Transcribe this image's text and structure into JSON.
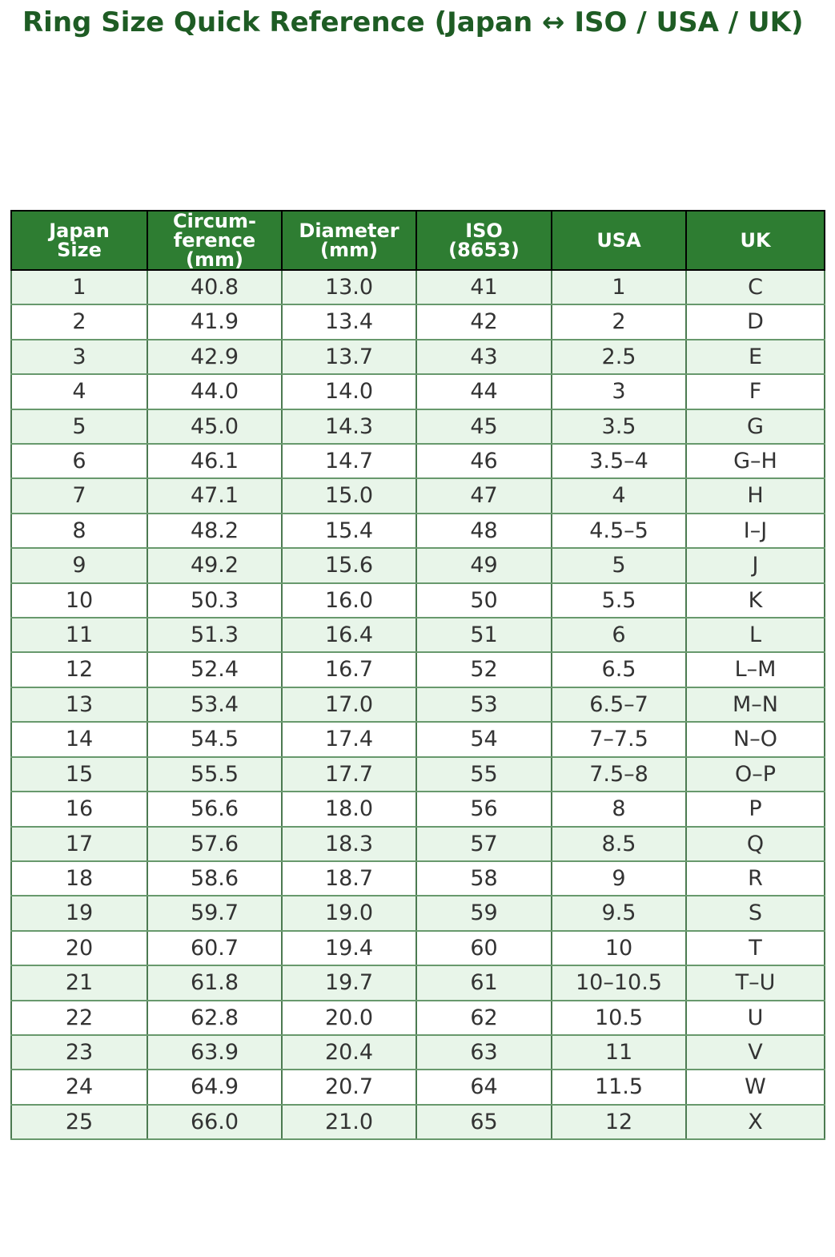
{
  "page": {
    "title": "Ring Size Quick Reference (Japan ↔ ISO / USA / UK)"
  },
  "colors": {
    "title_text": "#1e5c24",
    "header_bg": "#2e7d32",
    "header_text": "#ffffff",
    "header_grid": "#000000",
    "row_alt_bg": "#e8f5e9",
    "row_bg": "#ffffff",
    "grid_horizontal": "#68996d",
    "grid_vertical": "#4c7a51",
    "cell_text": "#333333"
  },
  "table": {
    "columns": [
      {
        "id": "japan-size",
        "label": "Japan\nSize"
      },
      {
        "id": "circumference",
        "label": "Circum-\nference\n(mm)"
      },
      {
        "id": "diameter",
        "label": "Diameter\n(mm)"
      },
      {
        "id": "iso",
        "label": "ISO\n(8653)"
      },
      {
        "id": "usa",
        "label": "USA"
      },
      {
        "id": "uk",
        "label": "UK"
      }
    ],
    "rows": [
      [
        "1",
        "40.8",
        "13.0",
        "41",
        "1",
        "C"
      ],
      [
        "2",
        "41.9",
        "13.4",
        "42",
        "2",
        "D"
      ],
      [
        "3",
        "42.9",
        "13.7",
        "43",
        "2.5",
        "E"
      ],
      [
        "4",
        "44.0",
        "14.0",
        "44",
        "3",
        "F"
      ],
      [
        "5",
        "45.0",
        "14.3",
        "45",
        "3.5",
        "G"
      ],
      [
        "6",
        "46.1",
        "14.7",
        "46",
        "3.5–4",
        "G–H"
      ],
      [
        "7",
        "47.1",
        "15.0",
        "47",
        "4",
        "H"
      ],
      [
        "8",
        "48.2",
        "15.4",
        "48",
        "4.5–5",
        "I–J"
      ],
      [
        "9",
        "49.2",
        "15.6",
        "49",
        "5",
        "J"
      ],
      [
        "10",
        "50.3",
        "16.0",
        "50",
        "5.5",
        "K"
      ],
      [
        "11",
        "51.3",
        "16.4",
        "51",
        "6",
        "L"
      ],
      [
        "12",
        "52.4",
        "16.7",
        "52",
        "6.5",
        "L–M"
      ],
      [
        "13",
        "53.4",
        "17.0",
        "53",
        "6.5–7",
        "M–N"
      ],
      [
        "14",
        "54.5",
        "17.4",
        "54",
        "7–7.5",
        "N–O"
      ],
      [
        "15",
        "55.5",
        "17.7",
        "55",
        "7.5–8",
        "O–P"
      ],
      [
        "16",
        "56.6",
        "18.0",
        "56",
        "8",
        "P"
      ],
      [
        "17",
        "57.6",
        "18.3",
        "57",
        "8.5",
        "Q"
      ],
      [
        "18",
        "58.6",
        "18.7",
        "58",
        "9",
        "R"
      ],
      [
        "19",
        "59.7",
        "19.0",
        "59",
        "9.5",
        "S"
      ],
      [
        "20",
        "60.7",
        "19.4",
        "60",
        "10",
        "T"
      ],
      [
        "21",
        "61.8",
        "19.7",
        "61",
        "10–10.5",
        "T–U"
      ],
      [
        "22",
        "62.8",
        "20.0",
        "62",
        "10.5",
        "U"
      ],
      [
        "23",
        "63.9",
        "20.4",
        "63",
        "11",
        "V"
      ],
      [
        "24",
        "64.9",
        "20.7",
        "64",
        "11.5",
        "W"
      ],
      [
        "25",
        "66.0",
        "21.0",
        "65",
        "12",
        "X"
      ]
    ]
  }
}
